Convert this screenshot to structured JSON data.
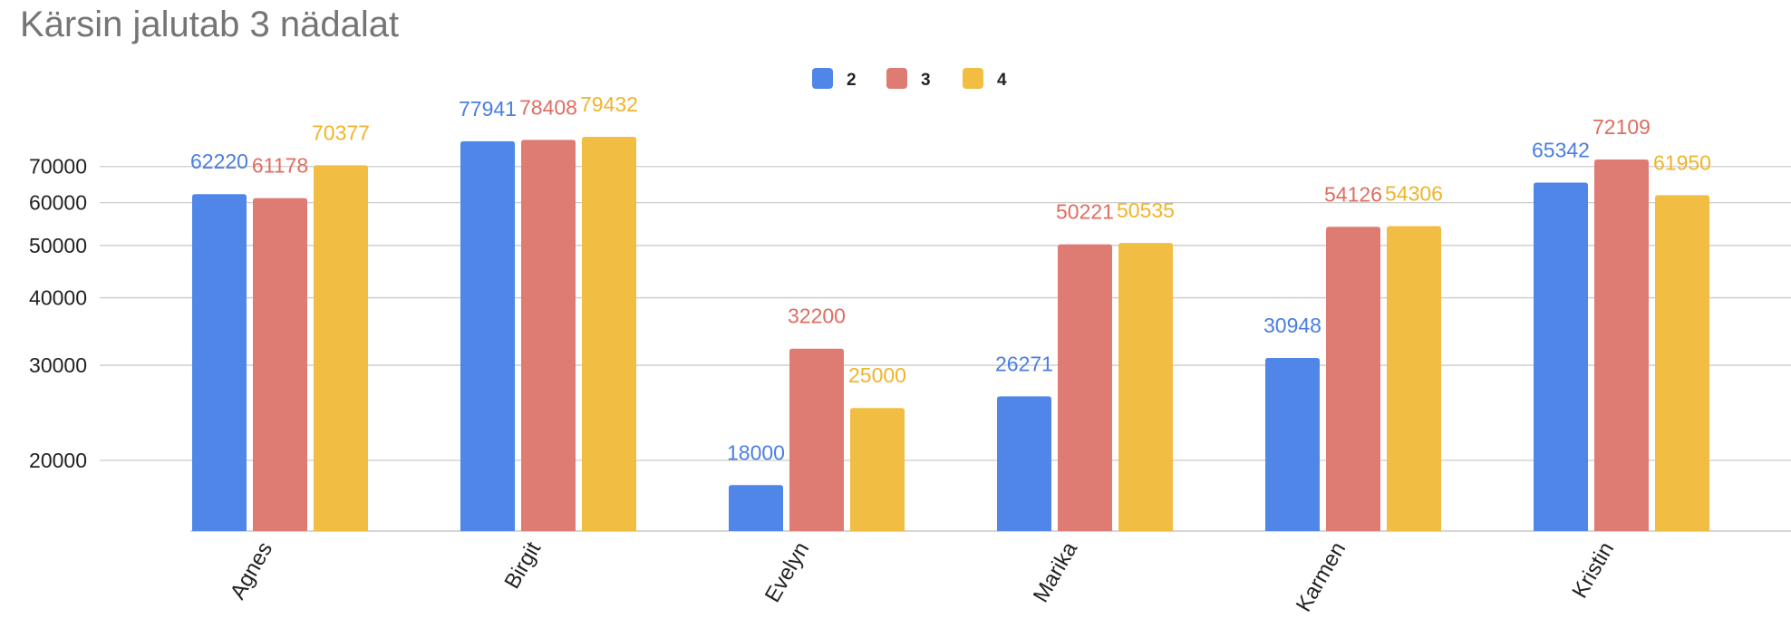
{
  "chart_data": {
    "type": "bar",
    "title": "Kärsin jalutab  3 nädalat",
    "xlabel": "",
    "ylabel": "",
    "categories": [
      "Agnes",
      "Birgit",
      "Evelyn",
      "Marika",
      "Karmen",
      "Kristin"
    ],
    "series": [
      {
        "name": "2",
        "color": "#4f86e8",
        "label_color": "#4a7ee0",
        "values": [
          62220,
          77941,
          18000,
          26271,
          30948,
          65342
        ]
      },
      {
        "name": "3",
        "color": "#de7b72",
        "label_color": "#e06c5f",
        "values": [
          61178,
          78408,
          32200,
          50221,
          54126,
          72109
        ]
      },
      {
        "name": "4",
        "color": "#f1bd42",
        "label_color": "#f0b429",
        "values": [
          70377,
          79432,
          25000,
          50535,
          54306,
          61950
        ]
      }
    ],
    "yticks": [
      20000,
      30000,
      40000,
      50000,
      60000,
      70000
    ],
    "ylim": [
      15000,
      82000
    ],
    "yscale": "log",
    "grid": true,
    "legend": "top-center"
  }
}
